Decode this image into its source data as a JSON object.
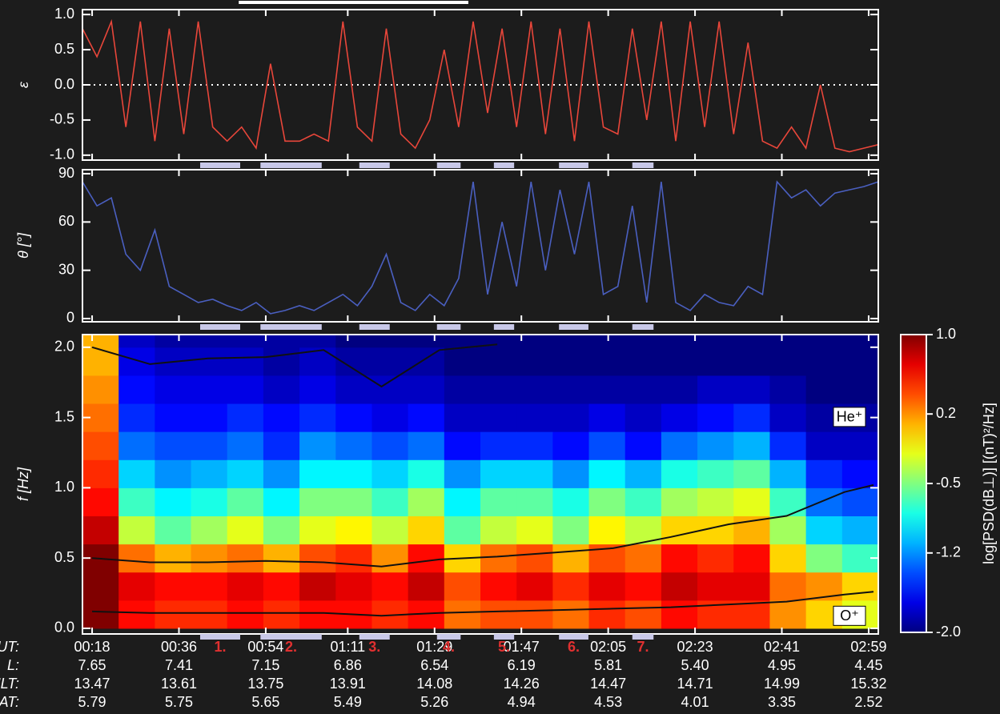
{
  "chart_data": [
    {
      "type": "line",
      "ylabel": "ε",
      "ylim": [
        -1.07,
        1.07
      ],
      "yticks": [
        {
          "value": 1,
          "label": "1.0"
        },
        {
          "value": 0.5,
          "label": "0.5"
        },
        {
          "value": 0,
          "label": "0.0"
        },
        {
          "value": -0.5,
          "label": "-0.5"
        },
        {
          "value": -1,
          "label": "-1.0"
        }
      ],
      "reference_line": 0,
      "series": [
        {
          "color": "#e8463a",
          "x": [
            16,
            19,
            22,
            25,
            28,
            31,
            34,
            37,
            40,
            43,
            46,
            49,
            52,
            55,
            58,
            61,
            64,
            67,
            70,
            73,
            76,
            79,
            82,
            85,
            88,
            91,
            94,
            97,
            100,
            103,
            106,
            109,
            112,
            115,
            118,
            121,
            124,
            127,
            130,
            133,
            136,
            139,
            142,
            145,
            148,
            151,
            154,
            157,
            160,
            163,
            166,
            169,
            172,
            175,
            178,
            181
          ],
          "values": [
            0.8,
            0.4,
            0.9,
            -0.6,
            0.9,
            -0.8,
            0.8,
            -0.7,
            0.9,
            -0.6,
            -0.8,
            -0.6,
            -0.9,
            0.3,
            -0.8,
            -0.8,
            -0.7,
            -0.8,
            0.9,
            -0.6,
            -0.8,
            0.8,
            -0.7,
            -0.9,
            -0.5,
            0.5,
            -0.6,
            0.9,
            -0.4,
            0.8,
            -0.6,
            0.9,
            -0.7,
            0.8,
            -0.8,
            0.9,
            -0.6,
            -0.7,
            0.8,
            -0.5,
            0.9,
            -0.8,
            0.9,
            -0.6,
            0.9,
            -0.7,
            0.6,
            -0.8,
            -0.9,
            -0.6,
            -0.9,
            0.0,
            -0.9,
            -0.95,
            -0.9,
            -0.85
          ]
        }
      ]
    },
    {
      "type": "line",
      "ylabel": "θ [°]",
      "ylim": [
        -2,
        92.5
      ],
      "yticks": [
        0,
        30,
        60,
        90
      ],
      "series": [
        {
          "color": "#4a5fc0",
          "x": [
            16,
            19,
            22,
            25,
            28,
            31,
            34,
            37,
            40,
            43,
            46,
            49,
            52,
            55,
            58,
            61,
            64,
            67,
            70,
            73,
            76,
            79,
            82,
            85,
            88,
            91,
            94,
            97,
            100,
            103,
            106,
            109,
            112,
            115,
            118,
            121,
            124,
            127,
            130,
            133,
            136,
            139,
            142,
            145,
            148,
            151,
            154,
            157,
            160,
            163,
            166,
            169,
            172,
            175,
            178,
            181
          ],
          "values": [
            85,
            70,
            75,
            40,
            30,
            55,
            20,
            15,
            10,
            12,
            8,
            5,
            10,
            3,
            5,
            8,
            5,
            10,
            15,
            8,
            20,
            40,
            10,
            5,
            15,
            8,
            25,
            85,
            15,
            60,
            20,
            85,
            30,
            80,
            40,
            85,
            15,
            20,
            70,
            10,
            85,
            10,
            5,
            15,
            10,
            8,
            20,
            15,
            85,
            75,
            80,
            70,
            78,
            80,
            82,
            85
          ]
        }
      ]
    },
    {
      "type": "spectrogram",
      "ylabel": "f [Hz]",
      "ylim": [
        -0.04,
        2.09
      ],
      "yticks": [
        {
          "value": 0,
          "label": "0.0"
        },
        {
          "value": 0.5,
          "label": "0.5"
        },
        {
          "value": 1,
          "label": "1.0"
        },
        {
          "value": 1.5,
          "label": "1.5"
        },
        {
          "value": 2,
          "label": "2.0"
        }
      ],
      "time_bins": [
        16,
        23.5,
        31,
        38.5,
        46,
        53.5,
        61,
        68.5,
        76,
        83.5,
        91,
        98.5,
        106,
        113.5,
        121,
        128.5,
        136,
        143.5,
        151,
        158.5,
        166,
        173.5,
        181
      ],
      "freq_bins": [
        0,
        0.2,
        0.4,
        0.6,
        0.8,
        1.0,
        1.2,
        1.4,
        1.6,
        1.8,
        2.0,
        2.2
      ],
      "z": [
        [
          1,
          1,
          1,
          0.8,
          0.6,
          0.5,
          0.4,
          0.3,
          0.2,
          0.1,
          0.1
        ],
        [
          0.6,
          0.7,
          0.3,
          -0.3,
          -0.7,
          -1.0,
          -1.3,
          -1.5,
          -1.6,
          -1.7,
          -1.8
        ],
        [
          0.5,
          0.6,
          0.1,
          -0.6,
          -0.9,
          -1.2,
          -1.4,
          -1.6,
          -1.7,
          -1.8,
          -1.9
        ],
        [
          0.5,
          0.6,
          0.2,
          -0.4,
          -0.8,
          -1.1,
          -1.4,
          -1.6,
          -1.7,
          -1.8,
          -1.9
        ],
        [
          0.6,
          0.7,
          0.3,
          -0.2,
          -0.6,
          -1.0,
          -1.3,
          -1.5,
          -1.7,
          -1.8,
          -1.9
        ],
        [
          0.5,
          0.6,
          0.1,
          -0.5,
          -0.9,
          -1.2,
          -1.5,
          -1.6,
          -1.8,
          -1.9,
          -1.9
        ],
        [
          0.6,
          0.8,
          0.4,
          -0.2,
          -0.5,
          -0.9,
          -1.2,
          -1.5,
          -1.7,
          -1.8,
          -1.9
        ],
        [
          0.6,
          0.7,
          0.5,
          -0.1,
          -0.5,
          -0.9,
          -1.3,
          -1.6,
          -1.8,
          -1.9,
          -2.0
        ],
        [
          0.5,
          0.6,
          0.2,
          -0.3,
          -0.7,
          -1.0,
          -1.4,
          -1.7,
          -1.8,
          -1.9,
          -2.0
        ],
        [
          0.6,
          0.8,
          0.6,
          0.0,
          -0.4,
          -0.8,
          -1.3,
          -1.6,
          -1.8,
          -1.9,
          -2.0
        ],
        [
          0.3,
          0.4,
          0.0,
          -0.6,
          -0.9,
          -1.2,
          -1.6,
          -1.8,
          -1.9,
          -2.0,
          -2.0
        ],
        [
          0.4,
          0.6,
          0.3,
          -0.3,
          -0.6,
          -1.0,
          -1.5,
          -1.8,
          -1.9,
          -2.0,
          -2.0
        ],
        [
          0.4,
          0.7,
          0.4,
          -0.2,
          -0.6,
          -1.0,
          -1.5,
          -1.8,
          -1.9,
          -2.0,
          -2.0
        ],
        [
          0.3,
          0.5,
          0.1,
          -0.5,
          -0.8,
          -1.2,
          -1.6,
          -1.8,
          -1.9,
          -2.0,
          -2.0
        ],
        [
          0.5,
          0.7,
          0.4,
          -0.1,
          -0.5,
          -0.9,
          -1.4,
          -1.7,
          -1.9,
          -2.0,
          -2.0
        ],
        [
          0.4,
          0.6,
          0.3,
          -0.3,
          -0.7,
          -1.1,
          -1.6,
          -1.8,
          -1.9,
          -2.0,
          -2.0
        ],
        [
          0.6,
          0.8,
          0.6,
          0.0,
          -0.4,
          -0.8,
          -1.3,
          -1.7,
          -1.9,
          -2.0,
          -2.0
        ],
        [
          0.5,
          0.7,
          0.5,
          0.0,
          -0.3,
          -0.7,
          -1.2,
          -1.6,
          -1.8,
          -2.0,
          -2.0
        ],
        [
          0.5,
          0.7,
          0.6,
          0.1,
          -0.2,
          -0.6,
          -1.1,
          -1.5,
          -1.8,
          -2.0,
          -2.0
        ],
        [
          0.2,
          0.3,
          0.0,
          -0.4,
          -0.7,
          -1.1,
          -1.5,
          -1.8,
          -1.9,
          -2.0,
          -2.0
        ],
        [
          0.0,
          0.2,
          -0.5,
          -1.0,
          -1.3,
          -1.5,
          -1.8,
          -1.9,
          -2.0,
          -2.0,
          -2.0
        ],
        [
          -0.2,
          0.0,
          -0.7,
          -1.1,
          -1.4,
          -1.6,
          -1.8,
          -1.9,
          -2.0,
          -2.0,
          -2.0
        ]
      ],
      "colormap": "jet",
      "zlim": [
        -2,
        1
      ],
      "colorbar_label": "log[PSD(dB⊥)] [(nT)²/Hz]",
      "colorbar_ticks": [
        {
          "value": 1,
          "label": "1.0"
        },
        {
          "value": 0.2,
          "label": "0.2"
        },
        {
          "value": -0.5,
          "label": "-0.5"
        },
        {
          "value": -1.2,
          "label": "-1.2"
        },
        {
          "value": -2,
          "label": "-2.0"
        }
      ],
      "lines": [
        {
          "color": "#111111",
          "x": [
            18,
            30,
            42,
            54,
            66,
            78,
            90,
            102,
            114,
            126,
            138,
            150,
            162,
            174,
            180
          ],
          "values": [
            2.0,
            1.88,
            1.92,
            1.93,
            1.98,
            1.72,
            1.98,
            2.02,
            null,
            null,
            null,
            null,
            null,
            null,
            null
          ]
        },
        {
          "name": "He⁺",
          "color": "#111111",
          "x": [
            18,
            30,
            42,
            54,
            66,
            78,
            90,
            102,
            114,
            126,
            138,
            150,
            162,
            174,
            180
          ],
          "values": [
            0.5,
            0.47,
            0.47,
            0.48,
            0.47,
            0.44,
            0.49,
            0.51,
            0.54,
            0.57,
            0.65,
            0.74,
            0.8,
            0.97,
            1.02
          ]
        },
        {
          "name": "O⁺",
          "color": "#111111",
          "x": [
            18,
            30,
            42,
            54,
            66,
            78,
            90,
            102,
            114,
            126,
            138,
            150,
            162,
            174,
            180
          ],
          "values": [
            0.12,
            0.11,
            0.11,
            0.11,
            0.11,
            0.09,
            0.11,
            0.12,
            0.13,
            0.14,
            0.15,
            0.17,
            0.19,
            0.24,
            0.26
          ]
        }
      ]
    }
  ],
  "time_axis": {
    "xlim": [
      16,
      181
    ],
    "xticks": [
      {
        "value": 18,
        "label": "00:18"
      },
      {
        "value": 36,
        "label": "00:36"
      },
      {
        "value": 54,
        "label": "00:54"
      },
      {
        "value": 71,
        "label": "01:11"
      },
      {
        "value": 89,
        "label": "01:29"
      },
      {
        "value": 107,
        "label": "01:47"
      },
      {
        "value": 125,
        "label": "02:05"
      },
      {
        "value": 143,
        "label": "02:23"
      },
      {
        "value": 161,
        "label": "02:41"
      },
      {
        "value": 179,
        "label": "02:59"
      }
    ],
    "events": {
      "intervals": [
        [
          40.4,
          48.7
        ],
        [
          52.9,
          65.6
        ],
        [
          73.4,
          79.7
        ],
        [
          89.5,
          94.4
        ],
        [
          101.3,
          105.5
        ],
        [
          114.8,
          120.9
        ],
        [
          130.0,
          134.4
        ]
      ],
      "labels": [
        "1.",
        "2.",
        "3.",
        "4.",
        "5.",
        "6.",
        "7."
      ],
      "color": "#e03030",
      "bar_color": "#c8c8e8"
    },
    "overview_interval": [
      48.4,
      96.0
    ],
    "table": {
      "header": "UT:",
      "rows": [
        {
          "label": "L:",
          "cells": [
            "7.65",
            "7.41",
            "7.15",
            "6.86",
            "6.54",
            "6.19",
            "5.81",
            "5.40",
            "4.95",
            "4.45"
          ]
        },
        {
          "label": "MLT:",
          "cells": [
            "13.47",
            "13.61",
            "13.75",
            "13.91",
            "14.08",
            "14.26",
            "14.47",
            "14.71",
            "14.99",
            "15.32"
          ]
        },
        {
          "label": "MLAT:",
          "cells": [
            "5.79",
            "5.75",
            "5.65",
            "5.49",
            "5.26",
            "4.94",
            "4.53",
            "4.01",
            "3.35",
            "2.52"
          ]
        }
      ]
    }
  }
}
